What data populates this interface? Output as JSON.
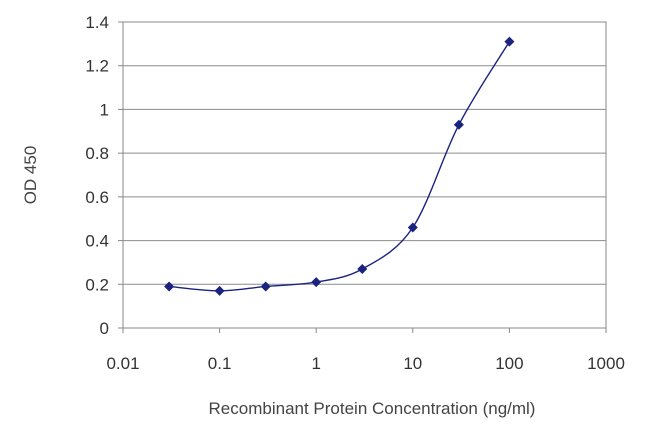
{
  "chart_data": {
    "type": "line",
    "x_scale": "log",
    "grid": true,
    "legend": "none",
    "xlabel": "Recombinant Protein Concentration (ng/ml)",
    "ylabel": "OD 450",
    "xlim": [
      0.01,
      1000
    ],
    "ylim": [
      0,
      1.4
    ],
    "x_ticks": [
      0.01,
      0.1,
      1,
      10,
      100,
      1000
    ],
    "x_tick_labels": [
      "0.01",
      "0.1",
      "1",
      "10",
      "100",
      "1000"
    ],
    "y_ticks": [
      0,
      0.2,
      0.4,
      0.6,
      0.8,
      1,
      1.2,
      1.4
    ],
    "y_tick_labels": [
      "0",
      "0.2",
      "0.4",
      "0.6",
      "0.8",
      "1",
      "1.2",
      "1.4"
    ],
    "series": [
      {
        "x": [
          0.03,
          0.1,
          0.3,
          1,
          3,
          10,
          30,
          100
        ],
        "y": [
          0.19,
          0.17,
          0.19,
          0.21,
          0.27,
          0.46,
          0.93,
          1.31
        ],
        "color": "#1a237e"
      }
    ]
  }
}
